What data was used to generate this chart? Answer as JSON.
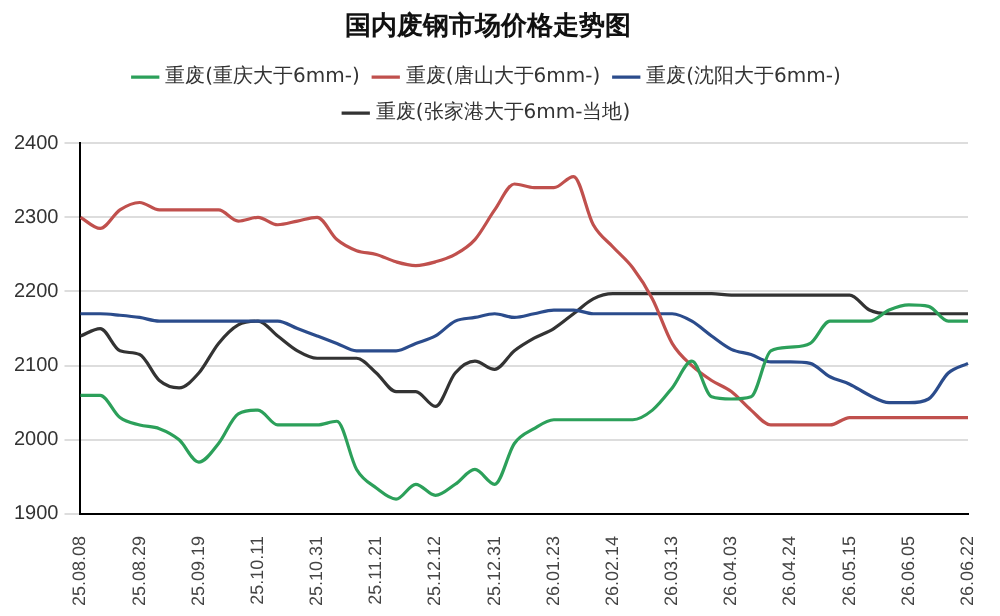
{
  "chart_data": {
    "type": "line",
    "title": "国内废钢市场价格走势图",
    "categories": [
      "25.08.08",
      null,
      null,
      "25.08.29",
      null,
      null,
      "25.09.19",
      null,
      null,
      "25.10.11",
      null,
      null,
      "25.10.31",
      null,
      null,
      "25.11.21",
      null,
      null,
      "25.12.12",
      null,
      null,
      "25.12.31",
      null,
      null,
      "26.01.23",
      null,
      null,
      "26.02.14",
      null,
      null,
      "26.03.13",
      null,
      null,
      "26.04.03",
      null,
      null,
      "26.04.24",
      null,
      null,
      "26.05.15",
      null,
      null,
      "26.06.05",
      null,
      null,
      "26.06.22"
    ],
    "series": [
      {
        "name": "重废(重庆大于6mm-)",
        "color": "#2ca05a",
        "values": [
          2060,
          2060,
          2030,
          2020,
          2015,
          2000,
          1970,
          1995,
          2035,
          2040,
          2020,
          2020,
          2020,
          2025,
          1960,
          1935,
          1920,
          1940,
          1925,
          1940,
          1960,
          1940,
          1995,
          2015,
          2027,
          2027,
          2027,
          2027,
          2027,
          2040,
          2070,
          2106,
          2058,
          2055,
          2058,
          2120,
          2125,
          2130,
          2160,
          2160,
          2160,
          2175,
          2182,
          2180,
          2160,
          2160
        ]
      },
      {
        "name": "重废(唐山大于6mm-)",
        "color": "#c0504d",
        "values": [
          2300,
          2285,
          2310,
          2320,
          2310,
          2310,
          2310,
          2310,
          2295,
          2300,
          2290,
          2295,
          2300,
          2270,
          2255,
          2250,
          2240,
          2235,
          2240,
          2250,
          2270,
          2310,
          2345,
          2340,
          2340,
          2355,
          2290,
          2260,
          2232,
          2190,
          2130,
          2100,
          2080,
          2065,
          2040,
          2020,
          2020,
          2020,
          2020,
          2030,
          2030,
          2030,
          2030,
          2030,
          2030,
          2030
        ]
      },
      {
        "name": "重废(沈阳大于6mm-)",
        "color": "#2b4c8c",
        "values": [
          2170,
          2170,
          2168,
          2165,
          2160,
          2160,
          2160,
          2160,
          2160,
          2160,
          2160,
          2150,
          2140,
          2130,
          2120,
          2120,
          2120,
          2130,
          2140,
          2160,
          2165,
          2170,
          2165,
          2170,
          2175,
          2175,
          2170,
          2170,
          2170,
          2170,
          2170,
          2160,
          2140,
          2122,
          2115,
          2105,
          2105,
          2103,
          2085,
          2075,
          2060,
          2050,
          2050,
          2055,
          2090,
          2103
        ]
      },
      {
        "name": "重废(张家港大于6mm-当地)",
        "color": "#333333",
        "values": [
          2140,
          2150,
          2120,
          2115,
          2080,
          2070,
          2090,
          2130,
          2155,
          2160,
          2140,
          2120,
          2110,
          2110,
          2110,
          2090,
          2065,
          2065,
          2045,
          2090,
          2106,
          2095,
          2120,
          2137,
          2150,
          2170,
          2190,
          2197,
          2197,
          2197,
          2197,
          2197,
          2197,
          2195,
          2195,
          2195,
          2195,
          2195,
          2195,
          2195,
          2175,
          2170,
          2170,
          2170,
          2170,
          2170
        ]
      }
    ],
    "ylim": [
      1900,
      2400
    ],
    "yticks": [
      1900,
      2000,
      2100,
      2200,
      2300,
      2400
    ],
    "grid": "y",
    "legend": "top",
    "marker": "none",
    "line_style": "solid"
  }
}
